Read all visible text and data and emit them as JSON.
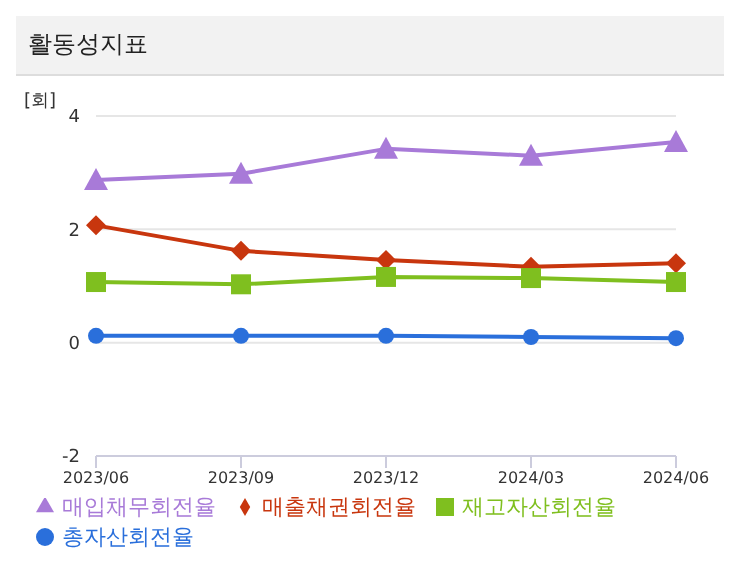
{
  "chart_data": {
    "type": "line",
    "title": "활동성지표",
    "ylabel": "[회]",
    "categories": [
      "2023/06",
      "2023/09",
      "2023/12",
      "2024/03",
      "2024/06"
    ],
    "series": [
      {
        "name": "총자산회전율",
        "color": "#2a6fdb",
        "marker": "circle",
        "values": [
          0.12,
          0.12,
          0.12,
          0.1,
          0.08
        ]
      },
      {
        "name": "매출채권회전율",
        "color": "#c8360e",
        "marker": "diamond",
        "values": [
          2.07,
          1.62,
          1.46,
          1.34,
          1.4
        ]
      },
      {
        "name": "재고자산회전율",
        "color": "#7fbf1f",
        "marker": "square",
        "values": [
          1.07,
          1.03,
          1.16,
          1.14,
          1.07
        ]
      },
      {
        "name": "매입채무회전율",
        "color": "#a87ad8",
        "marker": "triangle",
        "values": [
          2.87,
          2.98,
          3.42,
          3.3,
          3.54
        ]
      }
    ],
    "ylim": [
      -2,
      4
    ],
    "yticks": [
      -2,
      0,
      2,
      4
    ],
    "grid": "y",
    "legend": "bottom"
  }
}
